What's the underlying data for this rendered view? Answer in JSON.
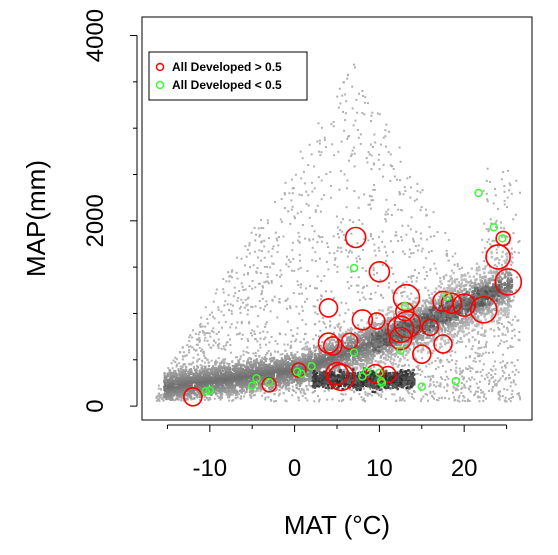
{
  "chart_data": {
    "type": "scatter",
    "title": "",
    "xlabel": "MAT (°C)",
    "ylabel": "MAP(mm)",
    "xlim": [
      -18,
      28
    ],
    "ylim": [
      -150,
      4200
    ],
    "xticks": [
      -10,
      0,
      10,
      20
    ],
    "xtick_labels": [
      "-10",
      "0",
      "10",
      "20"
    ],
    "yticks": [
      0,
      2000,
      4000
    ],
    "ytick_labels": [
      "0",
      "2000",
      "4000"
    ],
    "grid": false,
    "legend_position": "top-left",
    "background_density": "gray point cloud of all locations (density shading)",
    "series": [
      {
        "name": "All Developed > 0.5",
        "color": "#ff0000",
        "marker": "open-circle",
        "size_note": "circle radius varies by weight",
        "points": [
          {
            "x": -12,
            "y": 100,
            "r": 9
          },
          {
            "x": -3,
            "y": 230,
            "r": 7
          },
          {
            "x": 0.5,
            "y": 390,
            "r": 7
          },
          {
            "x": 4,
            "y": 1060,
            "r": 9
          },
          {
            "x": 4,
            "y": 680,
            "r": 10
          },
          {
            "x": 4.5,
            "y": 650,
            "r": 9
          },
          {
            "x": 5,
            "y": 350,
            "r": 11
          },
          {
            "x": 5.5,
            "y": 310,
            "r": 13
          },
          {
            "x": 6.5,
            "y": 700,
            "r": 8
          },
          {
            "x": 7.2,
            "y": 1820,
            "r": 10
          },
          {
            "x": 8,
            "y": 930,
            "r": 10
          },
          {
            "x": 9.5,
            "y": 350,
            "r": 9
          },
          {
            "x": 9.7,
            "y": 920,
            "r": 8
          },
          {
            "x": 10,
            "y": 1450,
            "r": 10
          },
          {
            "x": 11,
            "y": 340,
            "r": 8
          },
          {
            "x": 12.5,
            "y": 830,
            "r": 13
          },
          {
            "x": 12.5,
            "y": 730,
            "r": 11
          },
          {
            "x": 13,
            "y": 1020,
            "r": 9
          },
          {
            "x": 13.2,
            "y": 1170,
            "r": 13
          },
          {
            "x": 13.3,
            "y": 880,
            "r": 13
          },
          {
            "x": 15,
            "y": 560,
            "r": 9
          },
          {
            "x": 16,
            "y": 850,
            "r": 8
          },
          {
            "x": 17.5,
            "y": 670,
            "r": 9
          },
          {
            "x": 17.5,
            "y": 1130,
            "r": 10
          },
          {
            "x": 18.5,
            "y": 1110,
            "r": 10
          },
          {
            "x": 20,
            "y": 1090,
            "r": 11
          },
          {
            "x": 22.3,
            "y": 1040,
            "r": 13
          },
          {
            "x": 24,
            "y": 1610,
            "r": 12
          },
          {
            "x": 25.2,
            "y": 1340,
            "r": 13
          },
          {
            "x": 24.6,
            "y": 1810,
            "r": 7
          }
        ]
      },
      {
        "name": "All Developed < 0.5",
        "color": "#33ff33",
        "marker": "open-circle",
        "points": [
          {
            "x": -10.5,
            "y": 160
          },
          {
            "x": -10,
            "y": 170
          },
          {
            "x": -5,
            "y": 220
          },
          {
            "x": -4.5,
            "y": 300
          },
          {
            "x": -3,
            "y": 260
          },
          {
            "x": 0.3,
            "y": 370
          },
          {
            "x": 0.8,
            "y": 350
          },
          {
            "x": 2,
            "y": 430
          },
          {
            "x": 7,
            "y": 1490
          },
          {
            "x": 7,
            "y": 580
          },
          {
            "x": 8,
            "y": 320
          },
          {
            "x": 8.5,
            "y": 370
          },
          {
            "x": 10,
            "y": 360
          },
          {
            "x": 10.2,
            "y": 270
          },
          {
            "x": 10.3,
            "y": 250
          },
          {
            "x": 12.5,
            "y": 600
          },
          {
            "x": 13,
            "y": 1080
          },
          {
            "x": 15,
            "y": 210
          },
          {
            "x": 18,
            "y": 1180
          },
          {
            "x": 19,
            "y": 270
          },
          {
            "x": 21.7,
            "y": 2300
          },
          {
            "x": 23.5,
            "y": 1930
          },
          {
            "x": 24.5,
            "y": 1810
          }
        ]
      }
    ]
  }
}
